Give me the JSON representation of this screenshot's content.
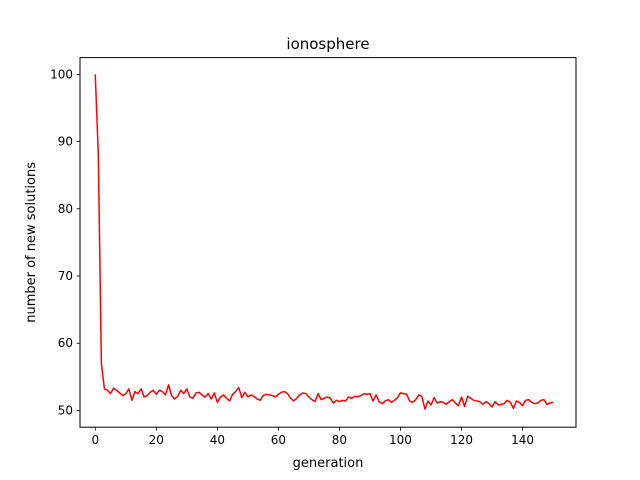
{
  "chart_data": {
    "type": "line",
    "title": "ionosphere",
    "xlabel": "generation",
    "ylabel": "number of new solutions",
    "xlim": [
      -5,
      157.5
    ],
    "ylim": [
      47.5,
      102.5
    ],
    "xticks": [
      0,
      20,
      40,
      60,
      80,
      100,
      120,
      140
    ],
    "yticks": [
      50,
      60,
      70,
      80,
      90,
      100
    ],
    "grid": false,
    "legend": "none",
    "series": [
      {
        "color": "#ff0000",
        "x": [
          0,
          1,
          2,
          3,
          4,
          5,
          6,
          7,
          8,
          9,
          10,
          11,
          12,
          13,
          14,
          15,
          16,
          17,
          18,
          19,
          20,
          21,
          22,
          23,
          24,
          25,
          26,
          27,
          28,
          29,
          30,
          31,
          32,
          33,
          34,
          35,
          36,
          37,
          38,
          39,
          40,
          41,
          42,
          43,
          44,
          45,
          46,
          47,
          48,
          49,
          50,
          51,
          52,
          53,
          54,
          55,
          56,
          57,
          58,
          59,
          60,
          61,
          62,
          63,
          64,
          65,
          66,
          67,
          68,
          69,
          70,
          71,
          72,
          73,
          74,
          75,
          76,
          77,
          78,
          79,
          80,
          81,
          82,
          83,
          84,
          85,
          86,
          87,
          88,
          89,
          90,
          91,
          92,
          93,
          94,
          95,
          96,
          97,
          98,
          99,
          100,
          101,
          102,
          103,
          104,
          105,
          106,
          107,
          108,
          109,
          110,
          111,
          112,
          113,
          114,
          115,
          116,
          117,
          118,
          119,
          120,
          121,
          122,
          123,
          124,
          125,
          126,
          127,
          128,
          129,
          130,
          131,
          132,
          133,
          134,
          135,
          136,
          137,
          138,
          139,
          140,
          141,
          142,
          143,
          144,
          145,
          146,
          147,
          148,
          149,
          150
        ],
        "values": [
          100,
          88,
          57,
          53.2,
          53.0,
          52.5,
          53.3,
          53.0,
          52.6,
          52.2,
          52.5,
          53.2,
          51.5,
          52.8,
          52.5,
          53.2,
          52.0,
          52.2,
          52.7,
          53.0,
          52.4,
          53.0,
          52.8,
          52.3,
          53.8,
          52.2,
          51.7,
          52.1,
          53.0,
          52.5,
          53.2,
          52.0,
          51.8,
          52.6,
          52.7,
          52.3,
          52.0,
          52.5,
          51.7,
          52.6,
          51.2,
          52.0,
          52.3,
          51.8,
          51.4,
          52.4,
          52.8,
          53.4,
          51.9,
          52.7,
          52.0,
          52.3,
          52.1,
          51.7,
          51.5,
          52.2,
          52.4,
          52.3,
          52.2,
          52.0,
          52.4,
          52.7,
          52.8,
          52.5,
          51.8,
          51.4,
          51.8,
          52.3,
          52.6,
          52.5,
          52.0,
          51.6,
          51.3,
          52.5,
          51.6,
          51.8,
          52.0,
          51.8,
          51.1,
          51.5,
          51.3,
          51.5,
          51.4,
          52.0,
          51.8,
          52.1,
          52.0,
          52.2,
          52.5,
          52.4,
          52.5,
          51.4,
          52.3,
          51.3,
          51.0,
          51.4,
          51.6,
          51.2,
          51.5,
          51.9,
          52.6,
          52.5,
          52.4,
          51.4,
          51.2,
          51.6,
          52.3,
          52.1,
          50.2,
          51.4,
          50.8,
          51.9,
          51.1,
          51.3,
          51.2,
          50.9,
          51.3,
          51.6,
          51.1,
          50.7,
          52.0,
          50.6,
          52.1,
          51.8,
          51.5,
          51.4,
          51.3,
          50.9,
          51.3,
          51.0,
          50.5,
          51.3,
          50.8,
          50.9,
          51.0,
          51.5,
          51.2,
          50.3,
          51.4,
          51.2,
          50.7,
          51.5,
          51.6,
          51.2,
          51.0,
          51.1,
          51.5,
          51.6,
          50.9,
          51.1,
          51.2
        ]
      }
    ]
  }
}
